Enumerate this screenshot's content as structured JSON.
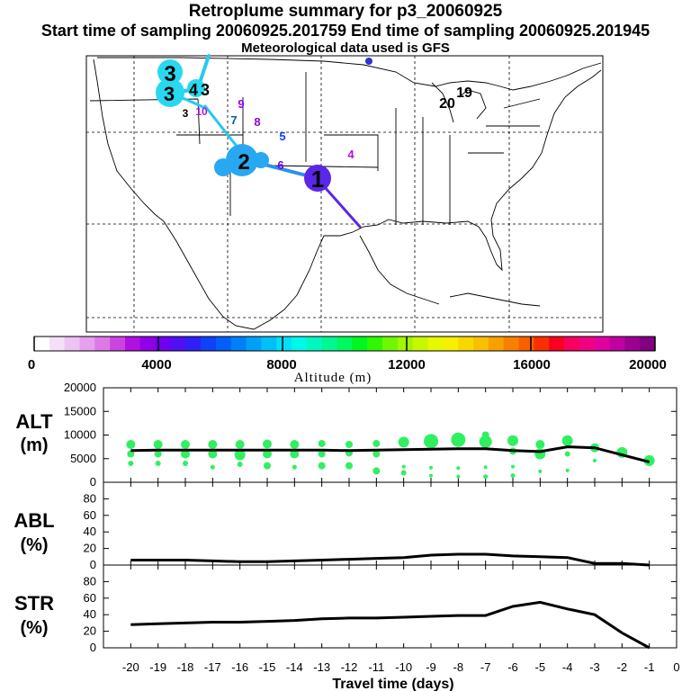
{
  "titles": {
    "main": "Retroplume summary for p3_20060925",
    "sampling": "Start time of sampling 20060925.201759     End time of sampling 20060925.201945",
    "met": "Meteorological data used is GFS"
  },
  "colorbar": {
    "label": "Altitude (m)",
    "ticks": [
      "0",
      "4000",
      "8000",
      "12000",
      "16000",
      "20000"
    ],
    "colors": [
      "#ffffff",
      "#f6e0f8",
      "#eec2f4",
      "#e6a0ee",
      "#dc7ae8",
      "#cc44e0",
      "#b010e0",
      "#9000e8",
      "#7000f0",
      "#5010f4",
      "#3020f8",
      "#1040f8",
      "#0060f8",
      "#0080f8",
      "#00a0f8",
      "#00c0f8",
      "#00e0f8",
      "#00f8e8",
      "#00f8c0",
      "#00f890",
      "#00f860",
      "#00f820",
      "#30f800",
      "#70f800",
      "#a0f800",
      "#c8f800",
      "#e8f800",
      "#f8f000",
      "#f8d800",
      "#f8c000",
      "#f8a000",
      "#f88000",
      "#f86000",
      "#f83000",
      "#f80020",
      "#f80060",
      "#f00080",
      "#e000a0",
      "#c000a0",
      "#9c0090",
      "#800080"
    ]
  },
  "map_labels": [
    {
      "text": "1",
      "color": "#7020e8",
      "size": "large"
    },
    {
      "text": "2",
      "color": "#00a0f8",
      "size": "large"
    },
    {
      "text": "3",
      "color": "#00e0f8",
      "size": "large"
    },
    {
      "text": "3",
      "color": "#00e0f8",
      "size": "large"
    },
    {
      "text": "4",
      "color": "#00e0f8",
      "size": "medium"
    },
    {
      "text": "3",
      "color": "#00e0f8",
      "size": "medium"
    },
    {
      "text": "4",
      "color": "#b010e0",
      "size": "small"
    },
    {
      "text": "5",
      "color": "#1040f8",
      "size": "small"
    },
    {
      "text": "6",
      "color": "#7000f0",
      "size": "small"
    },
    {
      "text": "7",
      "color": "#00a0f8",
      "size": "small"
    },
    {
      "text": "8",
      "color": "#9000e8",
      "size": "small"
    },
    {
      "text": "9",
      "color": "#9000e8",
      "size": "small"
    },
    {
      "text": "10",
      "color": "#b010e0",
      "size": "small"
    },
    {
      "text": "19",
      "color": "#00e0f8",
      "size": "medium"
    },
    {
      "text": "20",
      "color": "#00e0f8",
      "size": "medium"
    },
    {
      "text": "3",
      "color": "#00e0f8",
      "size": "small"
    }
  ],
  "chart_data": [
    {
      "type": "scatter",
      "panel": "ALT",
      "ylabel_line1": "ALT",
      "ylabel_line2": "(m)",
      "ylim": [
        0,
        20000
      ],
      "yticks": [
        "0",
        "5000",
        "10000",
        "15000",
        "20000"
      ],
      "line_x": [
        -20,
        -19,
        -18,
        -17,
        -16,
        -15,
        -14,
        -13,
        -12,
        -11,
        -10,
        -9,
        -8,
        -7,
        -6,
        -5,
        -4,
        -3,
        -2,
        -1
      ],
      "line_y": [
        6700,
        6800,
        6800,
        6800,
        6800,
        6800,
        6800,
        6800,
        6700,
        6800,
        6900,
        7000,
        7100,
        7100,
        6700,
        6500,
        7500,
        7300,
        5800,
        4300
      ],
      "points": [
        {
          "x": -20,
          "y": 8000,
          "r": 5
        },
        {
          "x": -20,
          "y": 6000,
          "r": 4
        },
        {
          "x": -20,
          "y": 4000,
          "r": 3
        },
        {
          "x": -19,
          "y": 8000,
          "r": 5
        },
        {
          "x": -19,
          "y": 6000,
          "r": 4
        },
        {
          "x": -19,
          "y": 4000,
          "r": 3
        },
        {
          "x": -18,
          "y": 8000,
          "r": 5
        },
        {
          "x": -18,
          "y": 6000,
          "r": 5
        },
        {
          "x": -18,
          "y": 4000,
          "r": 3
        },
        {
          "x": -17,
          "y": 8000,
          "r": 5
        },
        {
          "x": -17,
          "y": 6000,
          "r": 5
        },
        {
          "x": -17,
          "y": 3200,
          "r": 2.5
        },
        {
          "x": -16,
          "y": 8000,
          "r": 5
        },
        {
          "x": -16,
          "y": 5800,
          "r": 6
        },
        {
          "x": -16,
          "y": 3800,
          "r": 3
        },
        {
          "x": -15,
          "y": 8100,
          "r": 5
        },
        {
          "x": -15,
          "y": 6000,
          "r": 5
        },
        {
          "x": -15,
          "y": 3500,
          "r": 4
        },
        {
          "x": -14,
          "y": 8000,
          "r": 5
        },
        {
          "x": -14,
          "y": 6000,
          "r": 5
        },
        {
          "x": -14,
          "y": 3200,
          "r": 2.5
        },
        {
          "x": -13,
          "y": 8200,
          "r": 4
        },
        {
          "x": -13,
          "y": 6000,
          "r": 4
        },
        {
          "x": -13,
          "y": 3500,
          "r": 4
        },
        {
          "x": -12,
          "y": 8000,
          "r": 4
        },
        {
          "x": -12,
          "y": 6200,
          "r": 4
        },
        {
          "x": -12,
          "y": 3500,
          "r": 4
        },
        {
          "x": -11,
          "y": 8200,
          "r": 4
        },
        {
          "x": -11,
          "y": 6000,
          "r": 4
        },
        {
          "x": -11,
          "y": 2400,
          "r": 4
        },
        {
          "x": -10,
          "y": 8500,
          "r": 6
        },
        {
          "x": -10,
          "y": 3300,
          "r": 2
        },
        {
          "x": -10,
          "y": 2000,
          "r": 3
        },
        {
          "x": -9,
          "y": 8700,
          "r": 8
        },
        {
          "x": -9,
          "y": 3100,
          "r": 2
        },
        {
          "x": -9,
          "y": 1400,
          "r": 2
        },
        {
          "x": -8,
          "y": 9000,
          "r": 8
        },
        {
          "x": -8,
          "y": 3000,
          "r": 2
        },
        {
          "x": -8,
          "y": 1200,
          "r": 2
        },
        {
          "x": -7,
          "y": 10000,
          "r": 4
        },
        {
          "x": -7,
          "y": 8600,
          "r": 7
        },
        {
          "x": -7,
          "y": 3200,
          "r": 2
        },
        {
          "x": -7,
          "y": 1200,
          "r": 2.5
        },
        {
          "x": -6,
          "y": 8800,
          "r": 6
        },
        {
          "x": -6,
          "y": 6600,
          "r": 4
        },
        {
          "x": -6,
          "y": 3300,
          "r": 2
        },
        {
          "x": -6,
          "y": 1400,
          "r": 2.5
        },
        {
          "x": -5,
          "y": 8000,
          "r": 5
        },
        {
          "x": -5,
          "y": 6000,
          "r": 6
        },
        {
          "x": -5,
          "y": 2300,
          "r": 2
        },
        {
          "x": -4,
          "y": 8800,
          "r": 6
        },
        {
          "x": -4,
          "y": 6000,
          "r": 3
        },
        {
          "x": -4,
          "y": 2500,
          "r": 2
        },
        {
          "x": -3,
          "y": 7300,
          "r": 5
        },
        {
          "x": -3,
          "y": 4600,
          "r": 2
        },
        {
          "x": -2,
          "y": 6300,
          "r": 6
        },
        {
          "x": -1,
          "y": 4600,
          "r": 6
        }
      ]
    },
    {
      "type": "line",
      "panel": "ABL",
      "ylabel_line1": "ABL",
      "ylabel_line2": "(%)",
      "ylim": [
        0,
        100
      ],
      "yticks": [
        "0",
        "20",
        "40",
        "60",
        "80"
      ],
      "x": [
        -20,
        -19,
        -18,
        -17,
        -16,
        -15,
        -14,
        -13,
        -12,
        -11,
        -10,
        -9,
        -8,
        -7,
        -6,
        -5,
        -4,
        -3,
        -2,
        -1
      ],
      "y": [
        6,
        6,
        6,
        5,
        4,
        4,
        5,
        6,
        7,
        8,
        9,
        12,
        13,
        13,
        11,
        10,
        9,
        2,
        2,
        0
      ]
    },
    {
      "type": "line",
      "panel": "STR",
      "ylabel_line1": "STR",
      "ylabel_line2": "(%)",
      "ylim": [
        0,
        100
      ],
      "yticks": [
        "0",
        "20",
        "40",
        "60",
        "80"
      ],
      "x": [
        -20,
        -19,
        -18,
        -17,
        -16,
        -15,
        -14,
        -13,
        -12,
        -11,
        -10,
        -9,
        -8,
        -7,
        -6,
        -5,
        -4,
        -3,
        -2,
        -1
      ],
      "y": [
        28,
        29,
        30,
        31,
        31,
        32,
        33,
        35,
        36,
        36,
        37,
        38,
        39,
        39,
        50,
        55,
        47,
        40,
        18,
        0
      ]
    }
  ],
  "xaxis": {
    "label": "Travel time (days)",
    "ticks": [
      "-20",
      "-19",
      "-18",
      "-17",
      "-16",
      "-15",
      "-14",
      "-13",
      "-12",
      "-11",
      "-10",
      "-9",
      "-8",
      "-7",
      "-6",
      "-5",
      "-4",
      "-3",
      "-2",
      "-1",
      "0"
    ]
  },
  "colors": {
    "alt_points": "#30f060",
    "trajectory_main": "#5a26e8",
    "trajectory_light": "#28c8f0",
    "trajectory_blue": "#2a90f0"
  }
}
